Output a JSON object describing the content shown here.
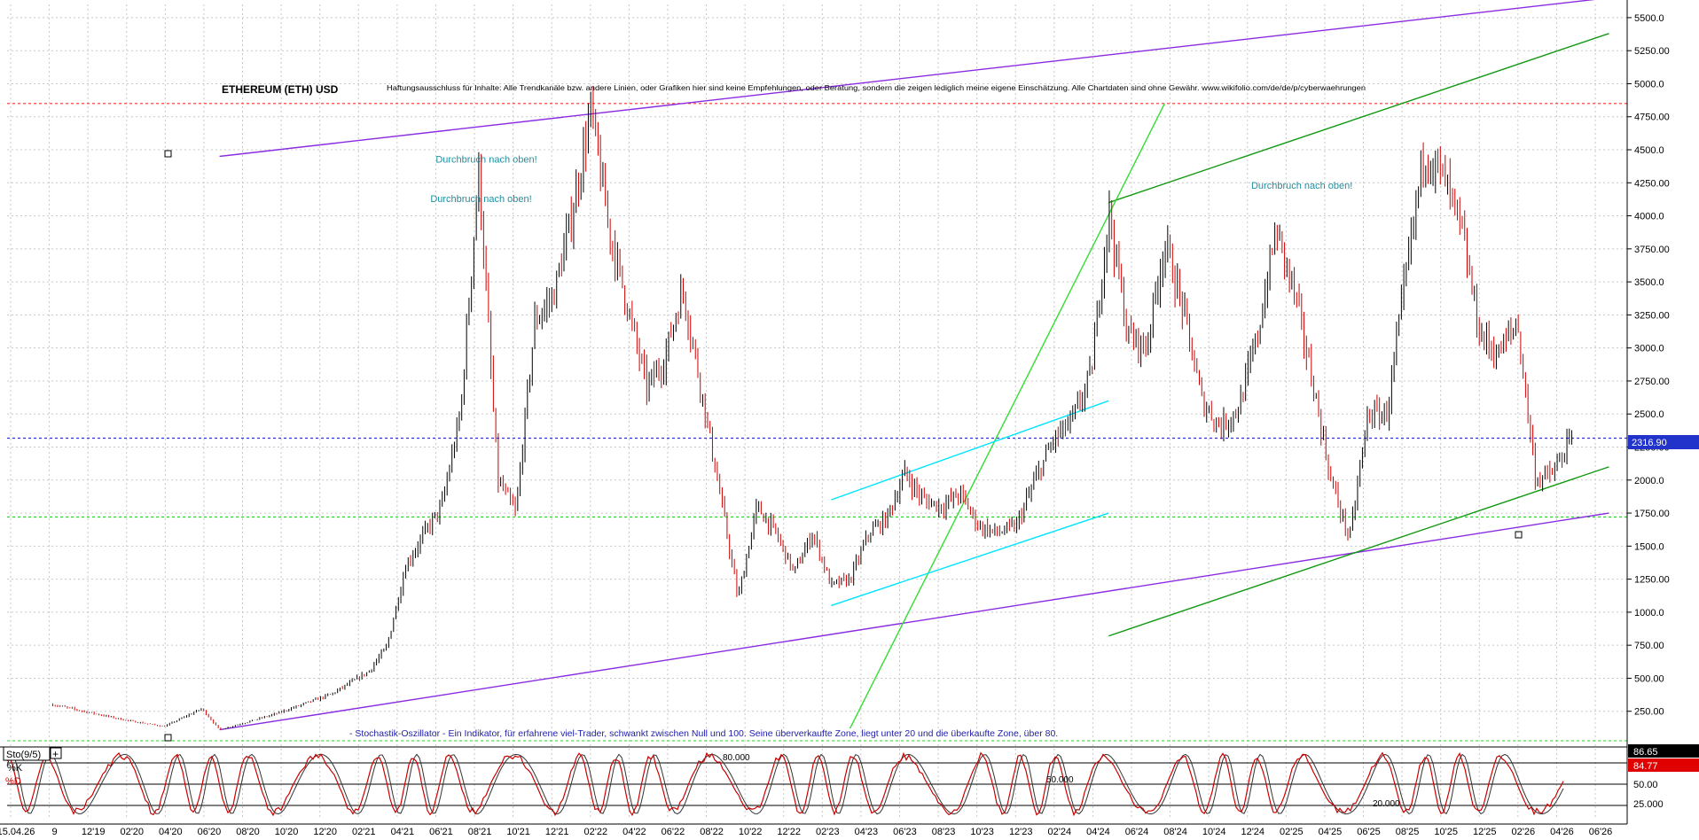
{
  "chart_data": [
    {
      "type": "candlestick",
      "title": "ETHEREUM (ETH) USD",
      "disclaimer": "Haftungsausschluss für Inhalte: Alle Trendkanäle bzw. andere Linien, oder Grafiken hier sind keine Empfehlungen, oder Beratung, sondern die zeigen lediglich meine eigene Einschätzung. Alle Chartdaten sind ohne Gewähr. www.wikifolio.com/de/de/p/cyberwaehrungen",
      "ylim": [
        0,
        5600
      ],
      "y_ticks": [
        250,
        500,
        750,
        1000,
        1250,
        1500,
        1750,
        2000,
        2250,
        2500,
        2750,
        3000,
        3250,
        3500,
        3750,
        4000,
        4250,
        4500,
        4750,
        5000,
        5250,
        5500
      ],
      "y_tick_labels": [
        "250.00",
        "500.00",
        "750.00",
        "1000.0",
        "1250.00",
        "1500.0",
        "1750.00",
        "2000.0",
        "2250.00",
        "2500.0",
        "2750.00",
        "3000.0",
        "3250.00",
        "3500.0",
        "3750.00",
        "4000.0",
        "4250.00",
        "4500.0",
        "4750.00",
        "5000.0",
        "5250.00",
        "5500.0"
      ],
      "x_tick_labels": [
        "15.04.26",
        "9",
        "12'19",
        "02'20",
        "04'20",
        "06'20",
        "08'20",
        "10'20",
        "12'20",
        "02'21",
        "04'21",
        "06'21",
        "08'21",
        "10'21",
        "12'21",
        "02'22",
        "04'22",
        "06'22",
        "08'22",
        "10'22",
        "12'22",
        "02'23",
        "04'23",
        "06'23",
        "08'23",
        "10'23",
        "12'23",
        "02'24",
        "04'24",
        "06'24",
        "08'24",
        "10'24",
        "12'24",
        "02'25",
        "04'25",
        "06'25",
        "08'25",
        "10'25",
        "12'25",
        "02'26",
        "04'26",
        "06'26"
      ],
      "current_price": 2316.9,
      "current_price_label": "2316.90",
      "price_anchors": [
        {
          "date": "2019-06",
          "price": 300
        },
        {
          "date": "2019-10",
          "price": 180
        },
        {
          "date": "2019-12",
          "price": 135
        },
        {
          "date": "2020-02",
          "price": 270
        },
        {
          "date": "2020-03",
          "price": 110
        },
        {
          "date": "2020-06",
          "price": 230
        },
        {
          "date": "2020-09",
          "price": 380
        },
        {
          "date": "2020-11",
          "price": 550
        },
        {
          "date": "2020-12",
          "price": 740
        },
        {
          "date": "2021-01",
          "price": 1350
        },
        {
          "date": "2021-02",
          "price": 1600
        },
        {
          "date": "2021-03",
          "price": 1800
        },
        {
          "date": "2021-04",
          "price": 2500
        },
        {
          "date": "2021-05",
          "price": 4350
        },
        {
          "date": "2021-06",
          "price": 2000
        },
        {
          "date": "2021-07",
          "price": 1750
        },
        {
          "date": "2021-08",
          "price": 3200
        },
        {
          "date": "2021-09",
          "price": 3400
        },
        {
          "date": "2021-10",
          "price": 4000
        },
        {
          "date": "2021-11",
          "price": 4800
        },
        {
          "date": "2021-12",
          "price": 3900
        },
        {
          "date": "2022-01",
          "price": 3300
        },
        {
          "date": "2022-02",
          "price": 2700
        },
        {
          "date": "2022-03",
          "price": 2900
        },
        {
          "date": "2022-04",
          "price": 3450
        },
        {
          "date": "2022-05",
          "price": 2700
        },
        {
          "date": "2022-06",
          "price": 1900
        },
        {
          "date": "2022-07",
          "price": 1100
        },
        {
          "date": "2022-08",
          "price": 1800
        },
        {
          "date": "2022-09",
          "price": 1600
        },
        {
          "date": "2022-10",
          "price": 1300
        },
        {
          "date": "2022-11",
          "price": 1600
        },
        {
          "date": "2022-12",
          "price": 1200
        },
        {
          "date": "2023-01",
          "price": 1250
        },
        {
          "date": "2023-02",
          "price": 1600
        },
        {
          "date": "2023-03",
          "price": 1700
        },
        {
          "date": "2023-04",
          "price": 2050
        },
        {
          "date": "2023-05",
          "price": 1850
        },
        {
          "date": "2023-06",
          "price": 1800
        },
        {
          "date": "2023-07",
          "price": 1900
        },
        {
          "date": "2023-08",
          "price": 1650
        },
        {
          "date": "2023-09",
          "price": 1600
        },
        {
          "date": "2023-10",
          "price": 1650
        },
        {
          "date": "2023-11",
          "price": 2000
        },
        {
          "date": "2023-12",
          "price": 2300
        },
        {
          "date": "2024-01",
          "price": 2450
        },
        {
          "date": "2024-02",
          "price": 2800
        },
        {
          "date": "2024-03",
          "price": 4050
        },
        {
          "date": "2024-04",
          "price": 3100
        },
        {
          "date": "2024-05",
          "price": 3000
        },
        {
          "date": "2024-06",
          "price": 3800
        },
        {
          "date": "2024-07",
          "price": 3300
        },
        {
          "date": "2024-08",
          "price": 2600
        },
        {
          "date": "2024-09",
          "price": 2400
        },
        {
          "date": "2024-10",
          "price": 2550
        },
        {
          "date": "2024-11",
          "price": 3100
        },
        {
          "date": "2024-12",
          "price": 3900
        },
        {
          "date": "2025-01",
          "price": 3400
        },
        {
          "date": "2025-02",
          "price": 2700
        },
        {
          "date": "2025-03",
          "price": 2000
        },
        {
          "date": "2025-04",
          "price": 1550
        },
        {
          "date": "2025-05",
          "price": 2500
        },
        {
          "date": "2025-06",
          "price": 2500
        },
        {
          "date": "2025-07",
          "price": 3500
        },
        {
          "date": "2025-08",
          "price": 4500
        },
        {
          "date": "2025-09",
          "price": 4300
        },
        {
          "date": "2025-10",
          "price": 3900
        },
        {
          "date": "2025-11",
          "price": 3100
        },
        {
          "date": "2025-12",
          "price": 2950
        },
        {
          "date": "2026-01",
          "price": 3200
        },
        {
          "date": "2026-02",
          "price": 2000
        },
        {
          "date": "2026-03",
          "price": 2050
        },
        {
          "date": "2026-04",
          "price": 2317
        }
      ],
      "annotations": [
        {
          "text": "Durchbruch nach oben!",
          "date": "2021-04",
          "price": 4350
        },
        {
          "text": "Durchbruch nach oben!",
          "date": "2021-04",
          "price": 4050
        },
        {
          "text": "Durchbruch nach oben!",
          "date": "2024-12",
          "price": 4150
        }
      ],
      "note": "- Stochastik-Oszillator - Ein Indikator, für erfahrene viel-Trader, schwankt zwischen Null und 100. Seine überverkaufte Zone, liegt unter 20 und die überkaufte Zone, über 80.",
      "trendlines": [
        {
          "color": "#8a2be2",
          "from": {
            "date": "2020-03",
            "price": 4450
          },
          "to": {
            "date": "2026-06",
            "price": 5650
          }
        },
        {
          "color": "#8a2be2",
          "from": {
            "date": "2020-03",
            "price": 110
          },
          "to": {
            "date": "2026-06",
            "price": 1750
          }
        },
        {
          "color": "#119911",
          "from": {
            "date": "2024-03",
            "price": 4100
          },
          "to": {
            "date": "2026-06",
            "price": 5380
          }
        },
        {
          "color": "#119911",
          "from": {
            "date": "2024-03",
            "price": 820
          },
          "to": {
            "date": "2026-06",
            "price": 2100
          }
        },
        {
          "color": "#33dd33",
          "from": {
            "date": "2023-01",
            "price": 120
          },
          "to": {
            "date": "2024-06",
            "price": 4850
          }
        },
        {
          "color": "#00e5ff",
          "from": {
            "date": "2022-12",
            "price": 1850
          },
          "to": {
            "date": "2024-03",
            "price": 2600
          }
        },
        {
          "color": "#00e5ff",
          "from": {
            "date": "2022-12",
            "price": 1050
          },
          "to": {
            "date": "2024-03",
            "price": 1750
          }
        }
      ],
      "levels": [
        {
          "price": 4850,
          "color": "#ee3333",
          "style": "dotted"
        },
        {
          "price": 1720,
          "color": "#33cc33",
          "style": "dotted"
        },
        {
          "price": 2316.9,
          "color": "#3333cc",
          "style": "dotted"
        }
      ]
    },
    {
      "type": "line",
      "title": "Sto(9/5)",
      "series": [
        {
          "name": "%K",
          "color": "#cc0000",
          "last_value": 86.65,
          "last_label": "86.65"
        },
        {
          "name": "%D",
          "color": "#333333",
          "last_value": 84.77,
          "last_label": "84.77"
        }
      ],
      "ylim": [
        0,
        100
      ],
      "reference_levels": [
        20,
        50,
        80
      ],
      "reference_labels": [
        "20.000",
        "50.000",
        "80.000"
      ],
      "y_tick_labels": [
        "50.00",
        "25.000"
      ]
    }
  ]
}
